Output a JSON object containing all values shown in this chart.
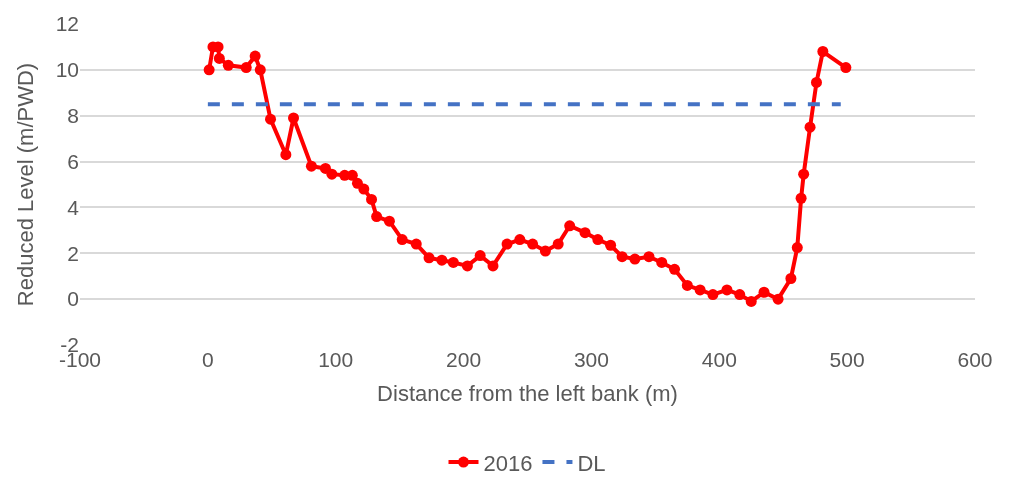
{
  "chart_data": {
    "type": "line",
    "xlabel": "Distance from the left bank (m)",
    "ylabel": "Reduced Level (m/PWD)",
    "xlim": [
      -100,
      600
    ],
    "xticks": [
      -100,
      0,
      100,
      200,
      300,
      400,
      500,
      600
    ],
    "ylim": [
      -2,
      12
    ],
    "yticks": [
      -2,
      0,
      2,
      4,
      6,
      8,
      10,
      12
    ],
    "grid": "y",
    "legend": "bottom",
    "series": [
      {
        "name": "2016",
        "color": "#ff0000",
        "marker": "circle",
        "line_style": "solid",
        "x": [
          1,
          4,
          8,
          9,
          16,
          30,
          37,
          41,
          49,
          61,
          67,
          81,
          92,
          97,
          107,
          113,
          117,
          122,
          128,
          132,
          142,
          152,
          163,
          173,
          183,
          192,
          203,
          213,
          223,
          234,
          244,
          254,
          264,
          274,
          283,
          295,
          305,
          315,
          324,
          334,
          345,
          355,
          365,
          375,
          385,
          395,
          406,
          416,
          425,
          435,
          446,
          456,
          461,
          464,
          466,
          471,
          476,
          481,
          499
        ],
        "values": [
          10.0,
          11.0,
          11.0,
          10.5,
          10.2,
          10.1,
          10.6,
          10.0,
          7.85,
          6.3,
          7.9,
          5.8,
          5.7,
          5.45,
          5.4,
          5.4,
          5.05,
          4.8,
          4.35,
          3.6,
          3.4,
          2.6,
          2.4,
          1.8,
          1.7,
          1.6,
          1.45,
          1.9,
          1.45,
          2.4,
          2.6,
          2.4,
          2.1,
          2.4,
          3.2,
          2.9,
          2.6,
          2.35,
          1.85,
          1.75,
          1.85,
          1.6,
          1.3,
          0.6,
          0.4,
          0.2,
          0.4,
          0.2,
          -0.1,
          0.3,
          0.0,
          0.9,
          2.25,
          4.4,
          5.45,
          7.5,
          9.45,
          10.8,
          10.1
        ]
      },
      {
        "name": "DL",
        "color": "#4472c4",
        "marker": "none",
        "line_style": "dashed",
        "x": [
          0,
          495
        ],
        "values": [
          8.5,
          8.5
        ]
      }
    ]
  }
}
